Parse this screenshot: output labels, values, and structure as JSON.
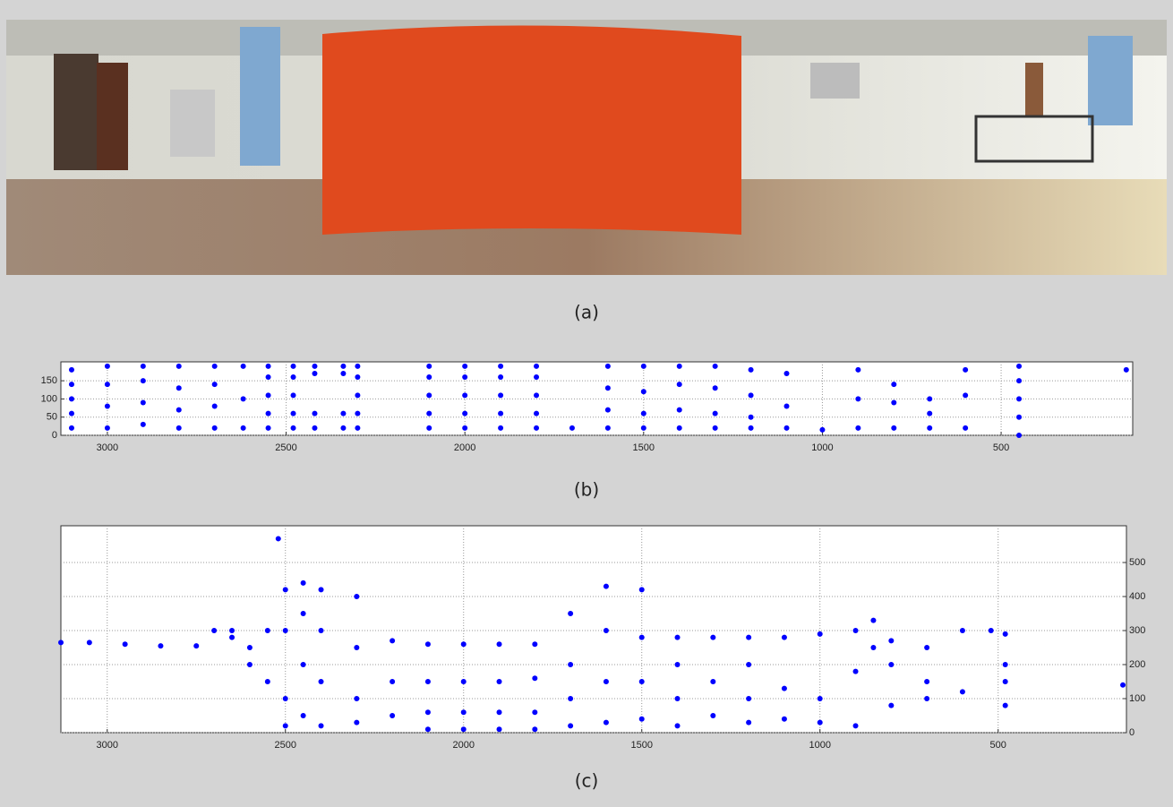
{
  "captions": [
    "(a)",
    "(b)",
    "(c)"
  ],
  "chart_data": [
    {
      "type": "scatter",
      "color": "#0000ff",
      "grid": true,
      "y_axis_side": "left",
      "xlim": [
        3130,
        132
      ],
      "ylim": [
        0,
        202
      ],
      "xticks": [
        3000,
        2500,
        2000,
        1500,
        1000,
        500
      ],
      "yticks": [
        0,
        50,
        100,
        150
      ],
      "x": [
        3100,
        3100,
        3100,
        3100,
        3100,
        3000,
        3000,
        3000,
        3000,
        2900,
        2900,
        2900,
        2900,
        2800,
        2800,
        2800,
        2800,
        2700,
        2700,
        2700,
        2700,
        2620,
        2620,
        2620,
        2550,
        2550,
        2550,
        2550,
        2550,
        2480,
        2480,
        2480,
        2480,
        2480,
        2420,
        2420,
        2420,
        2420,
        2340,
        2340,
        2340,
        2340,
        2300,
        2300,
        2300,
        2300,
        2300,
        2100,
        2100,
        2100,
        2100,
        2100,
        2000,
        2000,
        2000,
        2000,
        2000,
        1900,
        1900,
        1900,
        1900,
        1900,
        1800,
        1800,
        1800,
        1800,
        1800,
        1700,
        1600,
        1600,
        1600,
        1600,
        1500,
        1500,
        1500,
        1500,
        1400,
        1400,
        1400,
        1400,
        1300,
        1300,
        1300,
        1300,
        1200,
        1200,
        1200,
        1200,
        1100,
        1100,
        1100,
        1000,
        900,
        900,
        900,
        800,
        800,
        800,
        700,
        700,
        700,
        600,
        600,
        600,
        450,
        450,
        450,
        450,
        450,
        150
      ],
      "values": [
        20,
        60,
        100,
        140,
        180,
        20,
        80,
        140,
        190,
        30,
        90,
        150,
        190,
        20,
        70,
        130,
        190,
        20,
        80,
        140,
        190,
        20,
        100,
        190,
        20,
        60,
        110,
        160,
        190,
        20,
        60,
        110,
        160,
        190,
        20,
        60,
        170,
        190,
        20,
        60,
        170,
        190,
        20,
        60,
        110,
        160,
        190,
        20,
        60,
        110,
        160,
        190,
        20,
        60,
        110,
        160,
        190,
        20,
        60,
        110,
        160,
        190,
        20,
        60,
        110,
        160,
        190,
        20,
        20,
        70,
        130,
        190,
        20,
        60,
        120,
        190,
        20,
        70,
        140,
        190,
        20,
        60,
        130,
        190,
        20,
        50,
        110,
        180,
        20,
        80,
        170,
        15,
        20,
        100,
        180,
        20,
        90,
        140,
        20,
        60,
        100,
        20,
        110,
        180,
        0,
        50,
        100,
        150,
        190,
        180
      ]
    },
    {
      "type": "scatter",
      "color": "#0000ff",
      "grid": true,
      "y_axis_side": "right",
      "xlim": [
        3130,
        140
      ],
      "ylim": [
        0,
        608
      ],
      "xticks": [
        3000,
        2500,
        2000,
        1500,
        1000,
        500
      ],
      "yticks": [
        0,
        100,
        200,
        300,
        400,
        500
      ],
      "x": [
        3130,
        3050,
        2950,
        2850,
        2750,
        2700,
        2650,
        2650,
        2600,
        2600,
        2550,
        2550,
        2500,
        2500,
        2500,
        2500,
        2520,
        2450,
        2450,
        2450,
        2450,
        2400,
        2400,
        2400,
        2400,
        2300,
        2300,
        2300,
        2300,
        2200,
        2200,
        2200,
        2100,
        2100,
        2100,
        2100,
        2000,
        2000,
        2000,
        2000,
        1900,
        1900,
        1900,
        1900,
        1800,
        1800,
        1800,
        1800,
        1700,
        1700,
        1700,
        1700,
        1600,
        1600,
        1600,
        1600,
        1500,
        1500,
        1500,
        1500,
        1400,
        1400,
        1400,
        1400,
        1300,
        1300,
        1300,
        1200,
        1200,
        1200,
        1200,
        1100,
        1100,
        1100,
        1000,
        1000,
        1000,
        900,
        900,
        900,
        850,
        850,
        800,
        800,
        800,
        700,
        700,
        700,
        600,
        600,
        520,
        480,
        480,
        480,
        480,
        150
      ],
      "values": [
        265,
        265,
        260,
        255,
        255,
        300,
        280,
        300,
        250,
        200,
        300,
        150,
        420,
        300,
        100,
        20,
        570,
        440,
        350,
        200,
        50,
        420,
        300,
        150,
        20,
        400,
        250,
        100,
        30,
        270,
        150,
        50,
        260,
        150,
        60,
        10,
        260,
        150,
        60,
        10,
        260,
        150,
        60,
        10,
        260,
        160,
        60,
        10,
        350,
        200,
        100,
        20,
        430,
        300,
        150,
        30,
        420,
        280,
        150,
        40,
        280,
        200,
        100,
        20,
        280,
        150,
        50,
        280,
        200,
        100,
        30,
        280,
        130,
        40,
        290,
        100,
        30,
        300,
        180,
        20,
        330,
        250,
        270,
        200,
        80,
        250,
        150,
        100,
        300,
        120,
        300,
        290,
        200,
        150,
        80,
        140
      ]
    }
  ]
}
